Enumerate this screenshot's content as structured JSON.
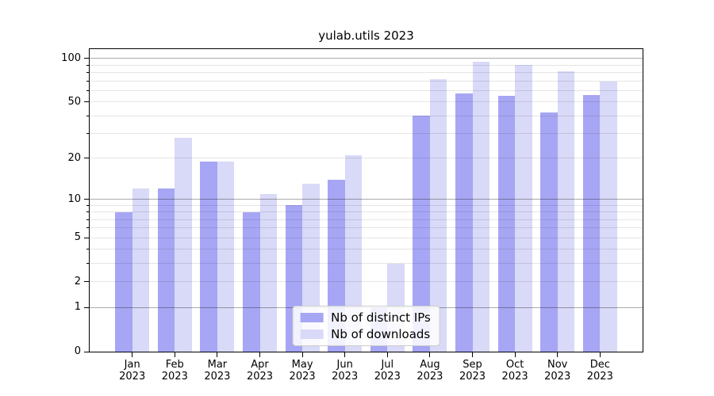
{
  "chart_data": {
    "type": "bar",
    "title": "yulab.utils 2023",
    "categories": [
      "Jan 2023",
      "Feb 2023",
      "Mar 2023",
      "Apr 2023",
      "May 2023",
      "Jun 2023",
      "Jul 2023",
      "Aug 2023",
      "Sep 2023",
      "Oct 2023",
      "Nov 2023",
      "Dec 2023"
    ],
    "series": [
      {
        "name": "Nb of distinct IPs",
        "color": "#a6a6f4",
        "values": [
          8,
          12,
          19,
          8,
          9,
          14,
          1,
          40,
          57,
          55,
          42,
          56
        ]
      },
      {
        "name": "Nb of downloads",
        "color": "#d9d9f8",
        "values": [
          12,
          28,
          19,
          11,
          13,
          21,
          3,
          72,
          95,
          90,
          82,
          69
        ]
      }
    ],
    "xlabel": "",
    "ylabel": "",
    "yscale": "log10(value+1)",
    "ylim": [
      0,
      116
    ],
    "yticks": [
      0,
      1,
      2,
      5,
      10,
      20,
      50,
      100
    ],
    "grid": {
      "major_values": [
        1,
        10,
        100
      ],
      "minor_values": [
        2,
        3,
        4,
        5,
        6,
        7,
        8,
        9,
        20,
        30,
        40,
        50,
        60,
        70,
        80,
        90
      ],
      "major_color": "rgba(0,0,0,0.33)",
      "minor_color": "rgba(0,0,0,0.10)",
      "drawn_on_top_of_bars": true
    },
    "legend": {
      "position": "lower center"
    }
  }
}
